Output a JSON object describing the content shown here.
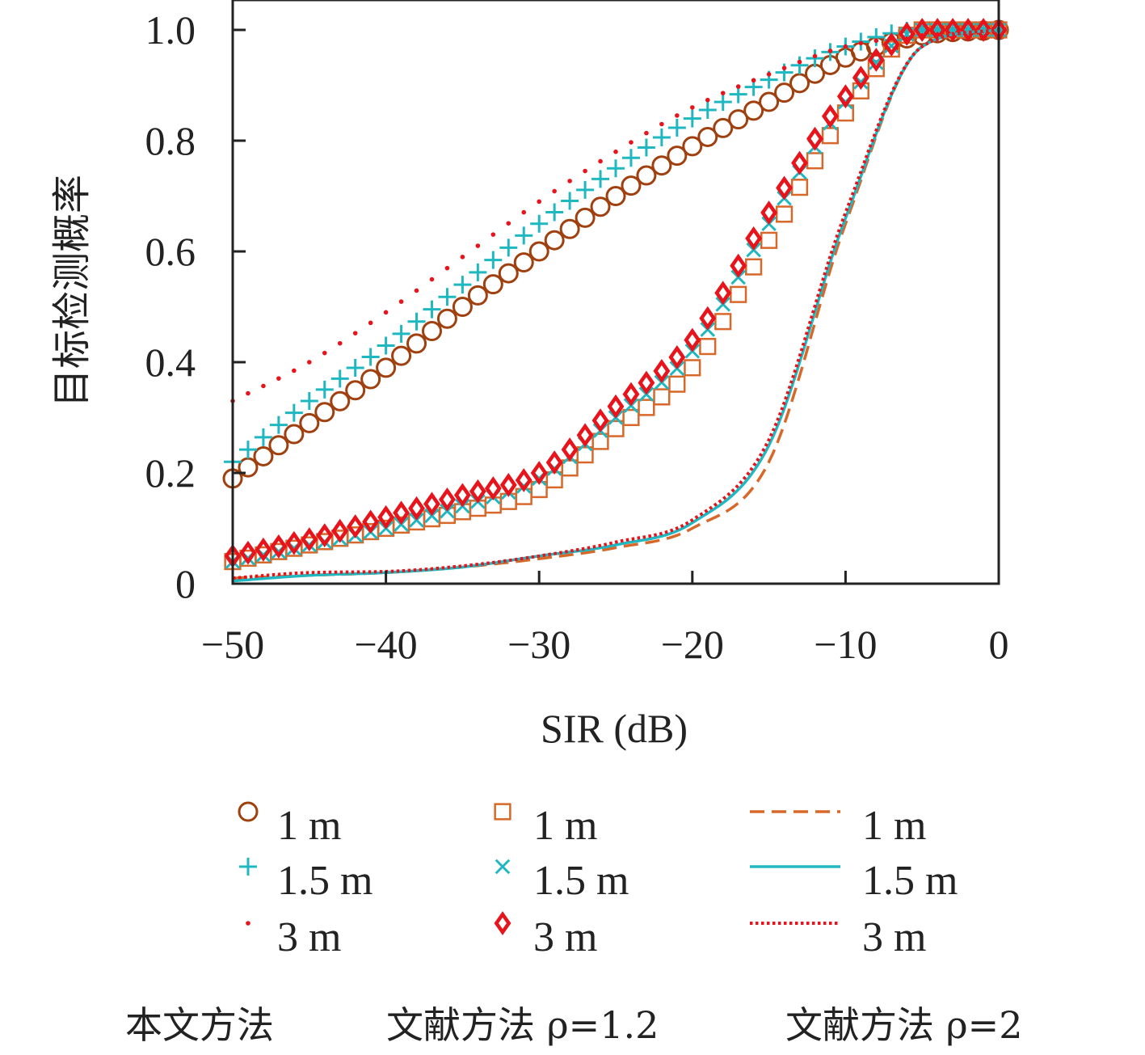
{
  "chart_data": {
    "type": "line",
    "xlabel": "SIR (dB)",
    "ylabel": "目标检测概率",
    "xlim": [
      -50,
      0
    ],
    "ylim": [
      0,
      1.0
    ],
    "xticks": [
      -50,
      -40,
      -30,
      -20,
      -10,
      0
    ],
    "xtick_labels": [
      "−50",
      "−40",
      "−30",
      "−20",
      "−10",
      "0"
    ],
    "yticks": [
      0,
      0.2,
      0.4,
      0.6,
      0.8,
      1.0
    ],
    "ytick_labels": [
      "0",
      "0.2",
      "0.4",
      "0.6",
      "0.8",
      "1.0"
    ],
    "grid": false,
    "legend_position": "bottom",
    "legend_groups": [
      "本文方法",
      "文献方法 ρ=1.2",
      "文献方法 ρ=2"
    ],
    "x": [
      -50,
      -45,
      -40,
      -35,
      -30,
      -25,
      -20,
      -15,
      -10,
      -5,
      0
    ],
    "series": [
      {
        "name": "1 m",
        "group": "本文方法",
        "color": "#a0400f",
        "marker": "circle",
        "line": "none",
        "values": [
          0.19,
          0.29,
          0.39,
          0.5,
          0.6,
          0.7,
          0.79,
          0.87,
          0.95,
          0.99,
          1.0
        ]
      },
      {
        "name": "1.5 m",
        "group": "本文方法",
        "color": "#20b8c0",
        "marker": "plus",
        "line": "none",
        "values": [
          0.22,
          0.33,
          0.43,
          0.54,
          0.65,
          0.75,
          0.84,
          0.91,
          0.97,
          1.0,
          1.0
        ]
      },
      {
        "name": "3 m",
        "group": "本文方法",
        "color": "#e8141c",
        "marker": "dot",
        "line": "none",
        "values": [
          0.33,
          0.4,
          0.49,
          0.59,
          0.69,
          0.78,
          0.86,
          0.92,
          0.97,
          0.99,
          1.0
        ]
      },
      {
        "name": "1 m",
        "group": "文献方法 ρ=1.2",
        "color": "#d8682a",
        "marker": "square",
        "line": "none",
        "values": [
          0.04,
          0.07,
          0.1,
          0.13,
          0.17,
          0.28,
          0.39,
          0.62,
          0.85,
          1.0,
          1.0
        ]
      },
      {
        "name": "1.5 m",
        "group": "文献方法 ρ=1.2",
        "color": "#20b8c0",
        "marker": "x",
        "line": "none",
        "values": [
          0.04,
          0.07,
          0.1,
          0.14,
          0.19,
          0.3,
          0.42,
          0.65,
          0.87,
          1.0,
          1.0
        ]
      },
      {
        "name": "3 m",
        "group": "文献方法 ρ=1.2",
        "color": "#e8141c",
        "marker": "diamond",
        "line": "none",
        "values": [
          0.05,
          0.08,
          0.12,
          0.16,
          0.2,
          0.32,
          0.44,
          0.67,
          0.88,
          1.0,
          1.0
        ]
      },
      {
        "name": "1 m",
        "group": "文献方法 ρ=2",
        "color": "#d8682a",
        "marker": "none",
        "line": "dashed",
        "values": [
          0.01,
          0.015,
          0.02,
          0.03,
          0.045,
          0.065,
          0.1,
          0.22,
          0.65,
          0.97,
          1.0
        ]
      },
      {
        "name": "1.5 m",
        "group": "文献方法 ρ=2",
        "color": "#20b8c0",
        "marker": "none",
        "line": "solid",
        "values": [
          0.005,
          0.015,
          0.02,
          0.03,
          0.05,
          0.07,
          0.11,
          0.25,
          0.66,
          0.97,
          1.0
        ]
      },
      {
        "name": "3 m",
        "group": "文献方法 ρ=2",
        "color": "#e8141c",
        "marker": "none",
        "line": "dotted",
        "values": [
          0.01,
          0.02,
          0.022,
          0.032,
          0.05,
          0.075,
          0.115,
          0.26,
          0.67,
          0.97,
          1.0
        ]
      }
    ]
  }
}
